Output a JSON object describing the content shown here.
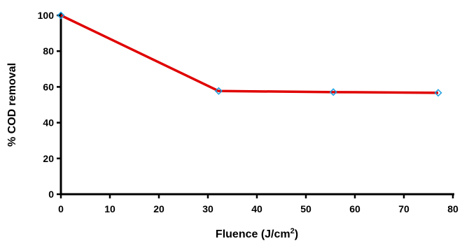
{
  "chart_data": {
    "type": "line",
    "title": "",
    "xlabel": "Fluence (J/cm",
    "xlabel_superscript": "2",
    "xlabel_suffix": ")",
    "ylabel": "% COD removal",
    "xlim": [
      0,
      80
    ],
    "ylim": [
      0,
      100
    ],
    "xticks": [
      "0",
      "10",
      "20",
      "30",
      "40",
      "50",
      "60",
      "70",
      "80"
    ],
    "yticks": [
      "0",
      "20",
      "40",
      "60",
      "80",
      "100"
    ],
    "grid": false,
    "legend": "none",
    "series": [
      {
        "x": [
          0,
          32.2,
          55.6,
          77
        ],
        "y": [
          100,
          57.7,
          57.1,
          56.7
        ],
        "line_color": "#e00000",
        "marker": "diamond",
        "marker_color": "#1a9fe0"
      }
    ]
  }
}
